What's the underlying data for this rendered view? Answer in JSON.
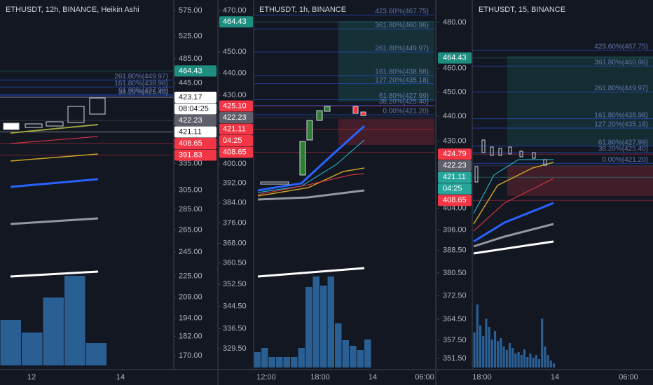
{
  "panels": [
    {
      "title": "ETHUSDT, 12h, BINANCE, Heikin Ashi",
      "price_ticks": [
        {
          "value": 575,
          "label": "575.00"
        },
        {
          "value": 525,
          "label": "525.00"
        },
        {
          "value": 485,
          "label": "485.00"
        },
        {
          "value": 445,
          "label": "445.00"
        },
        {
          "value": 335,
          "label": "335.00"
        },
        {
          "value": 305,
          "label": "305.00"
        },
        {
          "value": 285,
          "label": "285.00"
        },
        {
          "value": 265,
          "label": "265.00"
        },
        {
          "value": 245,
          "label": "245.00"
        },
        {
          "value": 225,
          "label": "225.00"
        },
        {
          "value": 209,
          "label": "209.00"
        },
        {
          "value": 194,
          "label": "194.00"
        },
        {
          "value": 182,
          "label": "182.00"
        },
        {
          "value": 170,
          "label": "170.00"
        }
      ],
      "price_tags": [
        {
          "value": 464.43,
          "label": "464.43",
          "color": "#1f8e80"
        },
        {
          "value": 423.17,
          "label": "423.17",
          "color": "#ffffff"
        },
        {
          "label": "08:04:25",
          "color": "#ffffff"
        },
        {
          "value": 422.23,
          "label": "422.23",
          "color": "#5d606b"
        },
        {
          "value": 421.11,
          "label": "421.11",
          "color": "#ffffff"
        },
        {
          "value": 408.65,
          "label": "408.65",
          "color": "#f23645"
        },
        {
          "value": 391.83,
          "label": "391.83",
          "color": "#f23645"
        }
      ],
      "fib_levels": [
        {
          "value": 438.98,
          "label": "161.80%(438.98)"
        },
        {
          "value": 449.97,
          "label": "261.80%(449.97)"
        },
        {
          "value": 427.99,
          "label": "61.80%(427.99)"
        },
        {
          "value": 425.4,
          "label": "38.20%(425.40)"
        }
      ],
      "time_labels": [
        "12",
        "14"
      ],
      "volume": [
        65,
        47,
        97,
        128,
        32
      ]
    },
    {
      "title": "ETHUSDT, 1h, BINANCE",
      "price_ticks": [
        {
          "value": 470,
          "label": "470.00"
        },
        {
          "value": 450,
          "label": "450.00"
        },
        {
          "value": 440,
          "label": "440.00"
        },
        {
          "value": 430,
          "label": "430.00"
        },
        {
          "value": 400,
          "label": "400.00"
        },
        {
          "value": 392,
          "label": "392.00"
        },
        {
          "value": 384,
          "label": "384.00"
        },
        {
          "value": 376,
          "label": "376.00"
        },
        {
          "value": 368,
          "label": "368.00"
        },
        {
          "value": 360.5,
          "label": "360.50"
        },
        {
          "value": 352.5,
          "label": "352.50"
        },
        {
          "value": 344.5,
          "label": "344.50"
        },
        {
          "value": 336.5,
          "label": "336.50"
        },
        {
          "value": 329.5,
          "label": "329.50"
        }
      ],
      "price_tags": [
        {
          "value": 464.43,
          "label": "464.43",
          "color": "#1f8e80"
        },
        {
          "value": 425.1,
          "label": "425.10",
          "color": "#f23645"
        },
        {
          "value": 422.23,
          "label": "422.23",
          "color": "#5d606b"
        },
        {
          "value": 421.11,
          "label": "421.11",
          "color": "#f23645"
        },
        {
          "label": "04:25",
          "color": "#f23645"
        },
        {
          "value": 408.65,
          "label": "408.65",
          "color": "#f23645"
        }
      ],
      "fib_levels": [
        {
          "value": 467.75,
          "label": "423.60%(467.75)"
        },
        {
          "value": 460.96,
          "label": "361.80%(460.96)"
        },
        {
          "value": 449.97,
          "label": "261.80%(449.97)"
        },
        {
          "value": 438.98,
          "label": "161.80%(438.98)"
        },
        {
          "value": 435.18,
          "label": "127.20%(435.18)"
        },
        {
          "value": 427.99,
          "label": "61.80%(427.99)"
        },
        {
          "value": 425.4,
          "label": "38.20%(425.40)"
        },
        {
          "value": 421.2,
          "label": "0.00%(421.20)"
        }
      ],
      "time_labels": [
        "12:00",
        "18:00",
        "14",
        "06:00"
      ],
      "volume": [
        22,
        28,
        15,
        15,
        15,
        15,
        28,
        115,
        130,
        117,
        130,
        63,
        39,
        31,
        25,
        40
      ]
    },
    {
      "title": "ETHUSDT, 15, BINANCE",
      "price_ticks": [
        {
          "value": 480,
          "label": "480.00"
        },
        {
          "value": 460,
          "label": "460.00"
        },
        {
          "value": 450,
          "label": "450.00"
        },
        {
          "value": 440,
          "label": "440.00"
        },
        {
          "value": 430,
          "label": "430.00"
        },
        {
          "value": 404,
          "label": "404.00"
        },
        {
          "value": 396,
          "label": "396.00"
        },
        {
          "value": 388.5,
          "label": "388.50"
        },
        {
          "value": 380.5,
          "label": "380.50"
        },
        {
          "value": 372.5,
          "label": "372.50"
        },
        {
          "value": 364.5,
          "label": "364.50"
        },
        {
          "value": 357.5,
          "label": "357.50"
        },
        {
          "value": 351.5,
          "label": "351.50"
        }
      ],
      "price_tags": [
        {
          "value": 464.43,
          "label": "464.43",
          "color": "#1f8e80"
        },
        {
          "value": 424.79,
          "label": "424.79",
          "color": "#f23645"
        },
        {
          "value": 422.23,
          "label": "422.23",
          "color": "#5d606b"
        },
        {
          "value": 421.11,
          "label": "421.11",
          "color": "#26a69a"
        },
        {
          "label": "04:25",
          "color": "#26a69a"
        },
        {
          "value": 408.65,
          "label": "408.65",
          "color": "#f23645"
        }
      ],
      "fib_levels": [
        {
          "value": 467.75,
          "label": "423.60%(467.75)"
        },
        {
          "value": 460.96,
          "label": "361.80%(460.96)"
        },
        {
          "value": 449.97,
          "label": "261.80%(449.97)"
        },
        {
          "value": 438.98,
          "label": "161.80%(438.98)"
        },
        {
          "value": 435.18,
          "label": "127.20%(435.18)"
        },
        {
          "value": 427.99,
          "label": "61.80%(427.99)"
        },
        {
          "value": 425.4,
          "label": "38.20%(425.40)"
        },
        {
          "value": 421.2,
          "label": "0.00%(421.20)"
        }
      ],
      "time_labels": [
        "18:00",
        "14",
        "06:00"
      ],
      "volume": [
        50,
        90,
        60,
        45,
        70,
        58,
        40,
        52,
        38,
        42,
        30,
        25,
        35,
        28,
        20,
        22,
        18,
        26,
        15,
        20,
        14,
        18,
        12,
        70,
        30,
        18,
        10,
        6
      ]
    }
  ]
}
